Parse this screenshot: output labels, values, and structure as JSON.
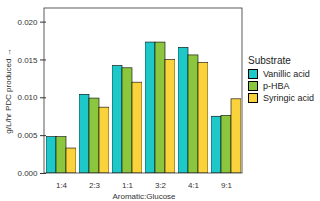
{
  "chart_data": {
    "type": "bar",
    "x_label": "Aromatic:Glucose",
    "y_label": "g/L/hr PDC produced",
    "legend_title": "Substrate",
    "categories": [
      "1:4",
      "2:3",
      "1:1",
      "3:2",
      "4:1",
      "9:1"
    ],
    "series": [
      {
        "name": "Vanillic acid",
        "color": "#1fc8c8",
        "values": [
          0.0048,
          0.0104,
          0.0142,
          0.0173,
          0.0166,
          0.0075
        ]
      },
      {
        "name": "p-HBA",
        "color": "#8cc63f",
        "values": [
          0.0048,
          0.0099,
          0.0139,
          0.0173,
          0.0156,
          0.0076
        ]
      },
      {
        "name": "Syringic acid",
        "color": "#f9d23c",
        "values": [
          0.0033,
          0.0087,
          0.012,
          0.015,
          0.0146,
          0.0098
        ]
      }
    ],
    "ylim": [
      0,
      0.0218
    ],
    "yticks": [
      {
        "value": 0,
        "label": "0.000"
      },
      {
        "value": 0.005,
        "label": "0.005"
      },
      {
        "value": 0.01,
        "label": "0.010"
      },
      {
        "value": 0.015,
        "label": "0.015"
      },
      {
        "value": 0.02,
        "label": "0.020"
      }
    ],
    "grid": false,
    "legend": "right"
  }
}
